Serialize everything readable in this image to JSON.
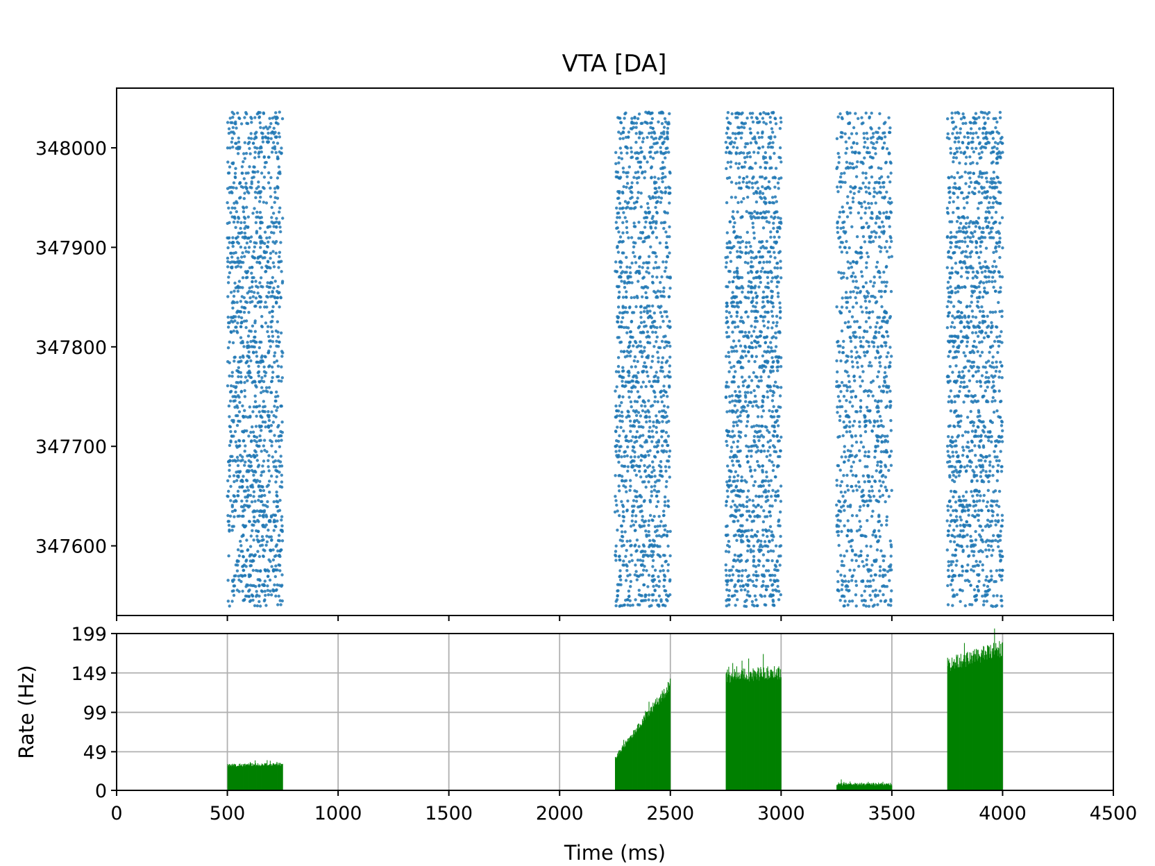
{
  "colors": {
    "raster": "#1f77b4",
    "rate": "#008000",
    "grid": "#b0b0b0",
    "axis": "#000000"
  },
  "chart_data": [
    {
      "type": "scatter",
      "title": "VTA [DA]",
      "xlabel": "",
      "ylabel": "",
      "xlim": [
        0,
        4500
      ],
      "ylim": [
        347530,
        348060
      ],
      "neuron_range": [
        347540,
        348035
      ],
      "yticks": [
        347600,
        347700,
        347800,
        347900,
        348000
      ],
      "grid": false,
      "x_ticks_labeled": false,
      "bursts": [
        {
          "start": 500,
          "end": 750,
          "rate_hz": 30
        },
        {
          "start": 2250,
          "end": 2500,
          "rate_hz": 90
        },
        {
          "start": 2750,
          "end": 3000,
          "rate_hz": 145
        },
        {
          "start": 3250,
          "end": 3500,
          "rate_hz": 8
        },
        {
          "start": 3750,
          "end": 4000,
          "rate_hz": 165
        }
      ]
    },
    {
      "type": "bar",
      "title": "",
      "xlabel": "Time (ms)",
      "ylabel": "Rate (Hz)",
      "xlim": [
        0,
        4500
      ],
      "ylim": [
        0,
        199
      ],
      "xticks": [
        0,
        500,
        1000,
        1500,
        2000,
        2500,
        3000,
        3500,
        4000,
        4500
      ],
      "yticks": [
        0,
        49,
        99,
        149,
        199
      ],
      "grid": true,
      "segments": [
        {
          "start": 500,
          "end": 750,
          "rate_start": 32,
          "rate_end": 33
        },
        {
          "start": 2250,
          "end": 2500,
          "rate_start": 42,
          "rate_end": 135
        },
        {
          "start": 2750,
          "end": 3000,
          "rate_start": 145,
          "rate_end": 150
        },
        {
          "start": 3250,
          "end": 3500,
          "rate_start": 8,
          "rate_end": 8
        },
        {
          "start": 3750,
          "end": 4000,
          "rate_start": 160,
          "rate_end": 180
        }
      ]
    }
  ]
}
